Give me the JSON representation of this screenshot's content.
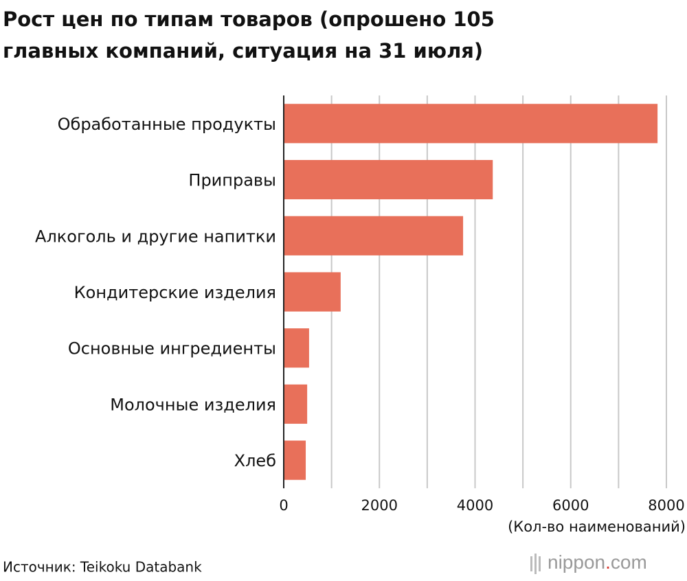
{
  "chart_data": {
    "type": "barh",
    "title": [
      "Рост цен по типам товаров (опрошено 105",
      "главных компаний, ситуация на 31 июля)"
    ],
    "categories": [
      "Обработанные продукты",
      "Приправы",
      "Алкоголь и другие напитки",
      "Кондитерские изделия",
      "Основные ингредиенты",
      "Молочные изделия",
      "Хлеб"
    ],
    "values": [
      7815,
      4370,
      3750,
      1190,
      530,
      490,
      460
    ],
    "color": "#e8705a",
    "xlim": [
      0,
      8000
    ],
    "xticks": [
      0,
      2000,
      4000,
      6000,
      8000
    ],
    "minor_xticks": [
      1000,
      3000,
      5000,
      7000
    ],
    "grid": true,
    "xlabel": "(Кол-во наименований)"
  },
  "source": "Источник: Teikoku Databank",
  "logo": {
    "name": "nippon",
    "dot": ".",
    "domain": "com"
  }
}
